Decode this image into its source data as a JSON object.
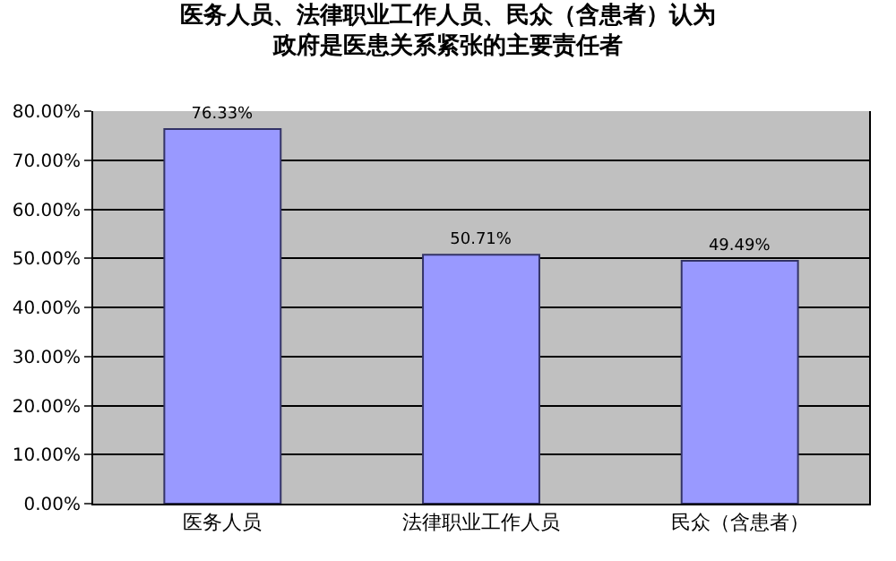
{
  "chart_data": {
    "type": "bar",
    "title": "医务人员、法律职业工作人员、民众（含患者）认为政府是医患关系紧张的主要责任者",
    "categories": [
      "医务人员",
      "法律职业工作人员",
      "民众（含患者）"
    ],
    "values": [
      76.33,
      50.71,
      49.49
    ],
    "value_labels": [
      "76.33%",
      "50.71%",
      "49.49%"
    ],
    "color": "#9999ff",
    "ylim": [
      0,
      80
    ],
    "yticks": [
      {
        "value": 0,
        "label": "0.00%"
      },
      {
        "value": 10,
        "label": "10.00%"
      },
      {
        "value": 20,
        "label": "20.00%"
      },
      {
        "value": 30,
        "label": "30.00%"
      },
      {
        "value": 40,
        "label": "40.00%"
      },
      {
        "value": 50,
        "label": "50.00%"
      },
      {
        "value": 60,
        "label": "60.00%"
      },
      {
        "value": 70,
        "label": "70.00%"
      },
      {
        "value": 80,
        "label": "80.00%"
      }
    ],
    "grid": "y",
    "legend": false
  }
}
